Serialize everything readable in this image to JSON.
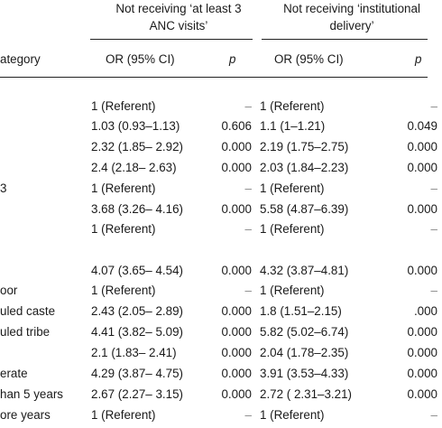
{
  "header": {
    "group1_line1": "Not receiving ‘at least 3",
    "group1_line2": "ANC visits’",
    "group2_line1": "Not receiving ‘institutional",
    "group2_line2": "delivery’",
    "category": "ategory",
    "or1": "OR (95% CI)",
    "p1": "p",
    "or2": "OR (95% CI)",
    "p2": "p"
  },
  "rows": [
    {
      "label": "",
      "or1": "1 (Referent)",
      "p1": "–",
      "or2": "1 (Referent)",
      "p2": "–"
    },
    {
      "label": "",
      "or1": "1.03 (0.93–1.13)",
      "p1": "0.606",
      "or2": "1.1 (1–1.21)",
      "p2": "0.049"
    },
    {
      "label": "",
      "or1": "2.32 (1.85– 2.92)",
      "p1": "0.000",
      "or2": "2.19 (1.75–2.75)",
      "p2": "0.000"
    },
    {
      "label": "",
      "or1": "2.4 (2.18– 2.63)",
      "p1": "0.000",
      "or2": "2.03 (1.84–2.23)",
      "p2": "0.000"
    },
    {
      "label": "3",
      "or1": "1 (Referent)",
      "p1": "–",
      "or2": "1 (Referent)",
      "p2": "–"
    },
    {
      "label": "",
      "or1": "3.68 (3.26– 4.16)",
      "p1": "0.000",
      "or2": "5.58 (4.87–6.39)",
      "p2": "0.000"
    },
    {
      "label": "",
      "or1": "1 (Referent)",
      "p1": "–",
      "or2": "1 (Referent)",
      "p2": "–"
    },
    {
      "label": "",
      "or1": "4.07 (3.65– 4.54)",
      "p1": "0.000",
      "or2": "4.32 (3.87–4.81)",
      "p2": "0.000"
    },
    {
      "label": "oor",
      "or1": "1 (Referent)",
      "p1": "–",
      "or2": "1 (Referent)",
      "p2": "–"
    },
    {
      "label": "uled caste",
      "or1": "2.43 (2.05– 2.89)",
      "p1": "0.000",
      "or2": "1.8 (1.51–2.15)",
      "p2": ".000"
    },
    {
      "label": "uled tribe",
      "or1": "4.41 (3.82– 5.09)",
      "p1": "0.000",
      "or2": "5.82 (5.02–6.74)",
      "p2": "0.000"
    },
    {
      "label": "",
      "or1": "2.1 (1.83– 2.41)",
      "p1": "0.000",
      "or2": "2.04 (1.78–2.35)",
      "p2": "0.000"
    },
    {
      "label": "erate",
      "or1": "4.29 (3.87– 4.75)",
      "p1": "0.000",
      "or2": "3.91 (3.53–4.33)",
      "p2": "0.000"
    },
    {
      "label": "han 5 years",
      "or1": "2.67 (2.27– 3.15)",
      "p1": "0.000",
      "or2": "2.72 ( 2.31–3.21)",
      "p2": "0.000"
    },
    {
      "label": "ore years",
      "or1": "1 (Referent)",
      "p1": "–",
      "or2": "1 (Referent)",
      "p2": "–"
    }
  ]
}
